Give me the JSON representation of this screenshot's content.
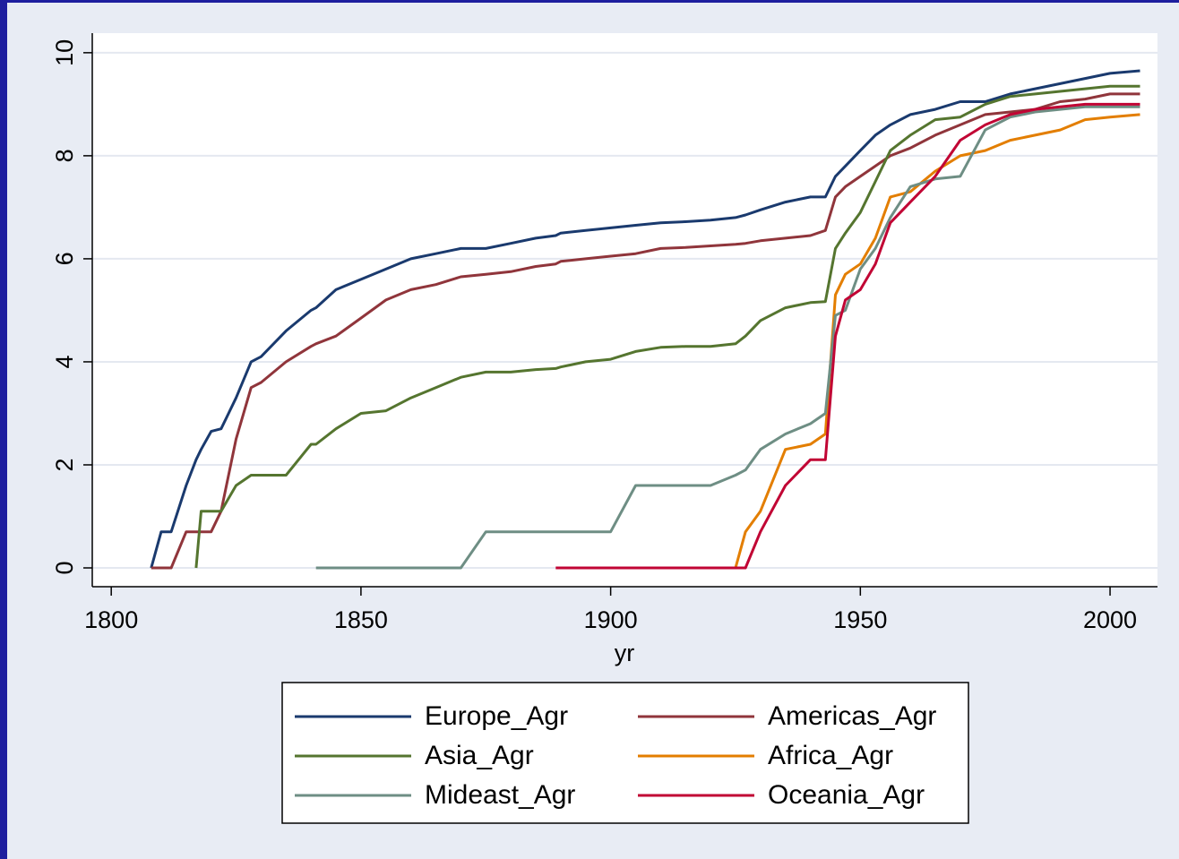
{
  "chart_data": {
    "type": "line",
    "x_label": "yr",
    "x": [
      1808,
      1810,
      1812,
      1815,
      1817,
      1818,
      1820,
      1822,
      1825,
      1828,
      1830,
      1835,
      1840,
      1841,
      1845,
      1850,
      1855,
      1860,
      1865,
      1870,
      1875,
      1880,
      1885,
      1889,
      1890,
      1895,
      1900,
      1905,
      1910,
      1915,
      1920,
      1925,
      1927,
      1930,
      1935,
      1940,
      1943,
      1945,
      1947,
      1950,
      1953,
      1956,
      1960,
      1965,
      1970,
      1975,
      1980,
      1985,
      1990,
      1995,
      2000,
      2006
    ],
    "series": [
      {
        "name": "Europe_Agr",
        "color": "#1a3a6e",
        "values": [
          0,
          0.7,
          0.7,
          1.6,
          2.1,
          2.3,
          2.65,
          2.7,
          3.3,
          4.0,
          4.1,
          4.6,
          5.0,
          5.05,
          5.4,
          5.6,
          5.8,
          6.0,
          6.1,
          6.2,
          6.2,
          6.3,
          6.4,
          6.45,
          6.5,
          6.55,
          6.6,
          6.65,
          6.7,
          6.72,
          6.75,
          6.8,
          6.85,
          6.95,
          7.1,
          7.2,
          7.2,
          7.6,
          7.8,
          8.1,
          8.4,
          8.6,
          8.8,
          8.9,
          9.05,
          9.05,
          9.2,
          9.3,
          9.4,
          9.5,
          9.6,
          9.65
        ]
      },
      {
        "name": "Americas_Agr",
        "color": "#90353b",
        "values": [
          0,
          0,
          0,
          0.7,
          0.7,
          0.7,
          0.7,
          1.1,
          2.5,
          3.5,
          3.6,
          4.0,
          4.3,
          4.35,
          4.5,
          4.85,
          5.2,
          5.4,
          5.5,
          5.65,
          5.7,
          5.75,
          5.85,
          5.9,
          5.95,
          6.0,
          6.05,
          6.1,
          6.2,
          6.22,
          6.25,
          6.28,
          6.3,
          6.35,
          6.4,
          6.45,
          6.55,
          7.2,
          7.4,
          7.6,
          7.8,
          8.0,
          8.15,
          8.4,
          8.6,
          8.8,
          8.85,
          8.9,
          9.05,
          9.1,
          9.2,
          9.2
        ]
      },
      {
        "name": "Asia_Agr",
        "color": "#55752f",
        "values": [
          null,
          null,
          null,
          null,
          0,
          1.1,
          1.1,
          1.1,
          1.6,
          1.8,
          1.8,
          1.8,
          2.4,
          2.4,
          2.7,
          3.0,
          3.05,
          3.3,
          3.5,
          3.7,
          3.8,
          3.8,
          3.85,
          3.87,
          3.9,
          4.0,
          4.05,
          4.2,
          4.28,
          4.3,
          4.3,
          4.35,
          4.5,
          4.8,
          5.05,
          5.15,
          5.17,
          6.2,
          6.5,
          6.9,
          7.5,
          8.1,
          8.4,
          8.7,
          8.75,
          9.0,
          9.15,
          9.2,
          9.25,
          9.3,
          9.35,
          9.35
        ]
      },
      {
        "name": "Africa_Agr",
        "color": "#e37e00",
        "values": [
          null,
          null,
          null,
          null,
          null,
          null,
          null,
          null,
          null,
          null,
          null,
          null,
          null,
          null,
          null,
          null,
          null,
          null,
          null,
          null,
          null,
          null,
          null,
          null,
          null,
          null,
          null,
          null,
          null,
          null,
          null,
          0,
          0.7,
          1.1,
          2.3,
          2.4,
          2.6,
          5.3,
          5.7,
          5.9,
          6.4,
          7.2,
          7.3,
          7.7,
          8.0,
          8.1,
          8.3,
          8.4,
          8.5,
          8.7,
          8.75,
          8.8
        ]
      },
      {
        "name": "Mideast_Agr",
        "color": "#6e8e84",
        "values": [
          null,
          null,
          null,
          null,
          null,
          null,
          null,
          null,
          null,
          null,
          null,
          null,
          null,
          0,
          0,
          0,
          0,
          0,
          0,
          0,
          0.7,
          0.7,
          0.7,
          0.7,
          0.7,
          0.7,
          0.7,
          1.6,
          1.6,
          1.6,
          1.6,
          1.8,
          1.9,
          2.3,
          2.6,
          2.8,
          3.0,
          4.9,
          5.0,
          5.8,
          6.2,
          6.8,
          7.4,
          7.55,
          7.6,
          8.5,
          8.75,
          8.85,
          8.9,
          8.95,
          8.95,
          8.95
        ]
      },
      {
        "name": "Oceania_Agr",
        "color": "#c10534",
        "values": [
          null,
          null,
          null,
          null,
          null,
          null,
          null,
          null,
          null,
          null,
          null,
          null,
          null,
          null,
          null,
          null,
          null,
          null,
          null,
          null,
          null,
          null,
          null,
          0,
          0,
          0,
          0,
          0,
          0,
          0,
          0,
          0,
          0,
          0.7,
          1.6,
          2.1,
          2.1,
          4.5,
          5.2,
          5.4,
          5.9,
          6.7,
          7.1,
          7.6,
          8.3,
          8.6,
          8.8,
          8.9,
          8.95,
          9.0,
          9.0,
          9.0
        ]
      }
    ],
    "xlim": [
      1796.2,
      2009.5
    ],
    "xticks": [
      1800,
      1850,
      1900,
      1950,
      2000
    ],
    "ylim": [
      -0.365,
      10.38
    ],
    "yticks": [
      0,
      2,
      4,
      6,
      8,
      10
    ],
    "grid": true,
    "legend": "bottom"
  }
}
